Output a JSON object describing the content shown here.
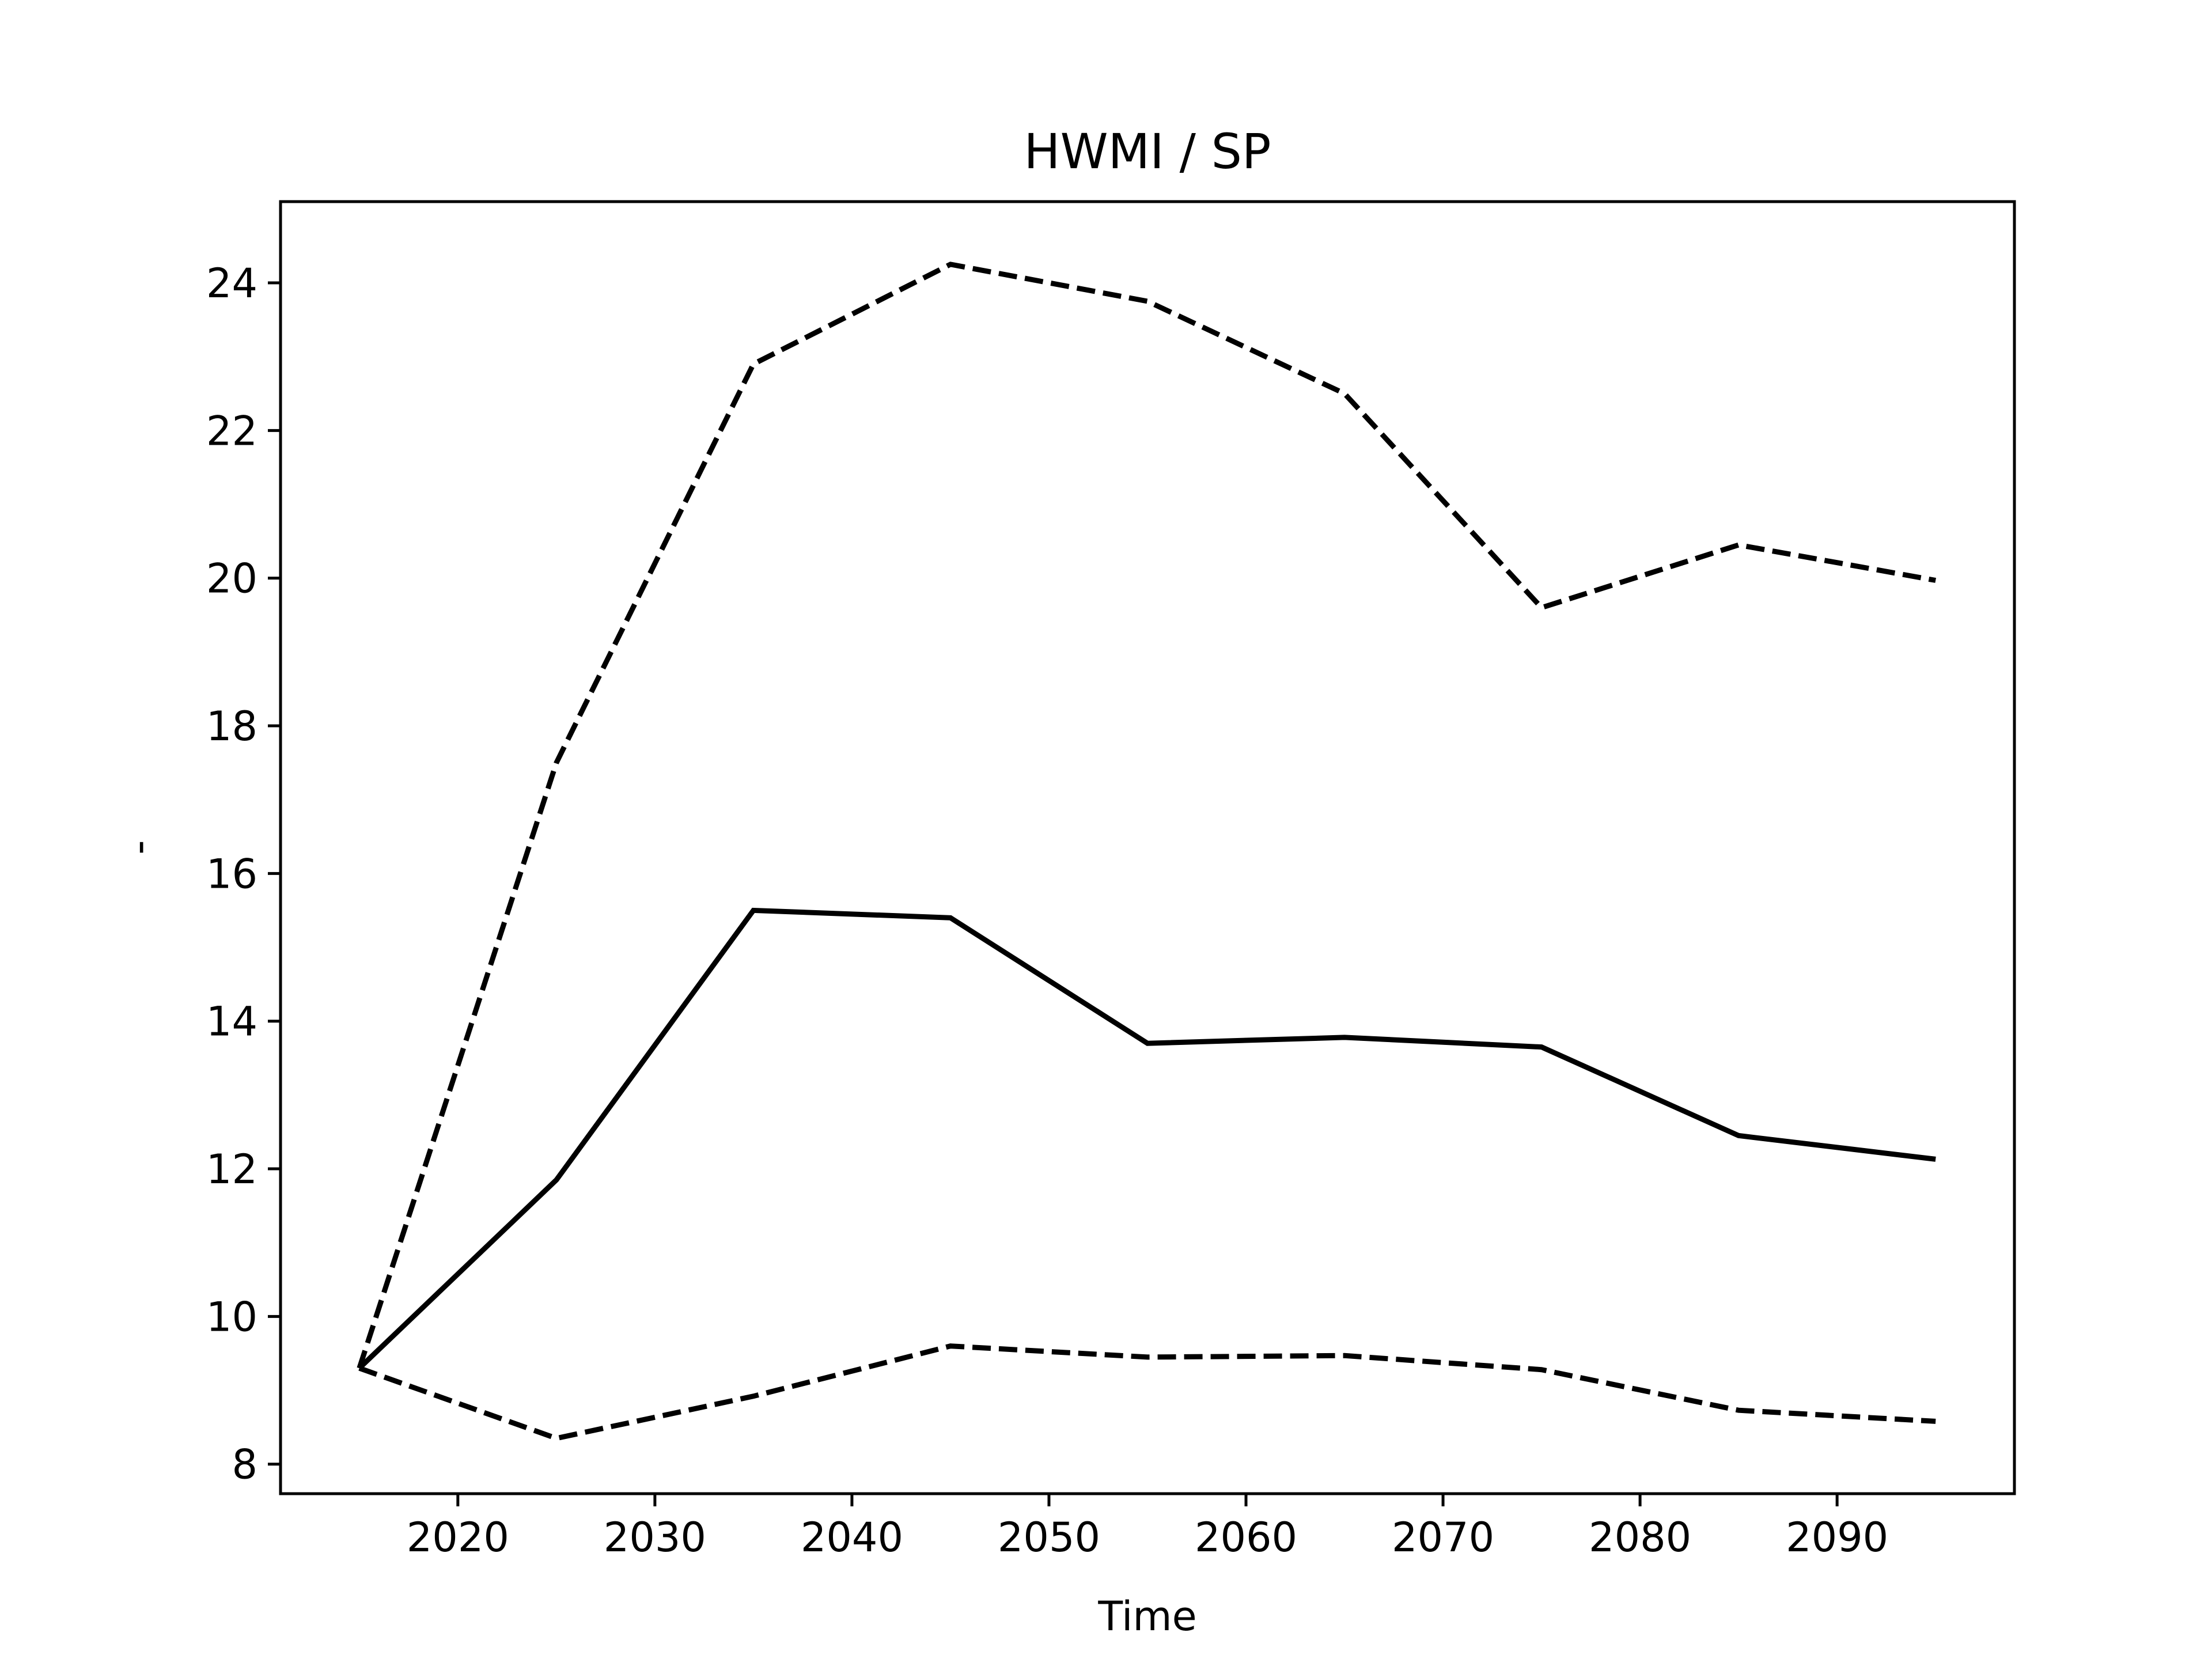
{
  "chart_data": {
    "type": "line",
    "title": "HWMI / SP",
    "xlabel": "Time",
    "ylabel": "-",
    "xlim": [
      2011,
      2099
    ],
    "ylim": [
      7.6,
      25.1
    ],
    "xticks": [
      2020,
      2030,
      2040,
      2050,
      2060,
      2070,
      2080,
      2090
    ],
    "yticks": [
      8,
      10,
      12,
      14,
      16,
      18,
      20,
      22,
      24
    ],
    "grid": false,
    "legend": "none",
    "x": [
      2015,
      2025,
      2035,
      2045,
      2055,
      2065,
      2075,
      2085,
      2095
    ],
    "series": [
      {
        "style": "solid",
        "color": "#000000",
        "values": [
          9.3,
          11.85,
          15.5,
          15.4,
          13.7,
          13.78,
          13.65,
          12.45,
          12.13
        ]
      },
      {
        "style": "dashed",
        "color": "#000000",
        "values": [
          9.3,
          17.5,
          22.9,
          24.25,
          23.75,
          22.5,
          19.6,
          20.45,
          19.97
        ]
      },
      {
        "style": "dashed",
        "color": "#000000",
        "values": [
          9.3,
          8.35,
          8.92,
          9.6,
          9.45,
          9.47,
          9.28,
          8.73,
          8.58
        ]
      }
    ]
  }
}
